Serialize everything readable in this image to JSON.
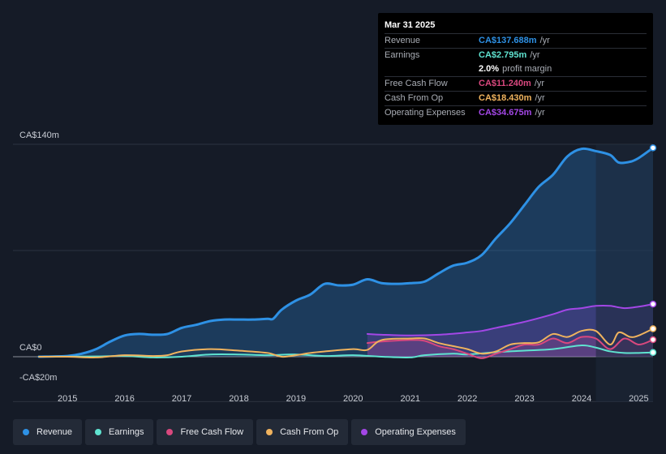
{
  "chart_data": {
    "type": "area",
    "title": "",
    "y_labels": [
      "CA$140m",
      "CA$0",
      "-CA$20m"
    ],
    "ylim": [
      -20,
      140
    ],
    "xlim": [
      2014.5,
      2025.25
    ],
    "x_ticks": [
      2015,
      2016,
      2017,
      2018,
      2019,
      2020,
      2021,
      2022,
      2023,
      2024,
      2025
    ],
    "x_tick_labels": [
      "2015",
      "2016",
      "2017",
      "2018",
      "2019",
      "2020",
      "2021",
      "2022",
      "2023",
      "2024",
      "2025"
    ],
    "forecast_start": 2024.25,
    "series": [
      {
        "name": "Revenue",
        "color": "#2e91e5",
        "fill": true,
        "points": [
          [
            2014.5,
            0
          ],
          [
            2015.0,
            0.5
          ],
          [
            2015.25,
            2
          ],
          [
            2015.5,
            5
          ],
          [
            2015.75,
            10
          ],
          [
            2016.0,
            14
          ],
          [
            2016.25,
            15
          ],
          [
            2016.5,
            14.5
          ],
          [
            2016.75,
            15
          ],
          [
            2017.0,
            19
          ],
          [
            2017.25,
            21
          ],
          [
            2017.5,
            23.5
          ],
          [
            2017.75,
            24.5
          ],
          [
            2018.0,
            24.5
          ],
          [
            2018.25,
            24.5
          ],
          [
            2018.5,
            25
          ],
          [
            2018.6,
            25
          ],
          [
            2018.75,
            31
          ],
          [
            2019.0,
            37
          ],
          [
            2019.25,
            41
          ],
          [
            2019.5,
            48
          ],
          [
            2019.75,
            47
          ],
          [
            2020.0,
            47.5
          ],
          [
            2020.25,
            51
          ],
          [
            2020.5,
            48.5
          ],
          [
            2020.75,
            48
          ],
          [
            2021.0,
            48.5
          ],
          [
            2021.25,
            49.5
          ],
          [
            2021.5,
            55
          ],
          [
            2021.75,
            60
          ],
          [
            2022.0,
            62
          ],
          [
            2022.25,
            67
          ],
          [
            2022.5,
            78
          ],
          [
            2022.75,
            88
          ],
          [
            2023.0,
            100
          ],
          [
            2023.25,
            112
          ],
          [
            2023.5,
            120
          ],
          [
            2023.75,
            132
          ],
          [
            2024.0,
            137
          ],
          [
            2024.25,
            135.5
          ],
          [
            2024.5,
            133
          ],
          [
            2024.65,
            128
          ],
          [
            2024.85,
            128.5
          ],
          [
            2025.0,
            131
          ],
          [
            2025.25,
            137.688
          ]
        ]
      },
      {
        "name": "Earnings",
        "color": "#5fe3d0",
        "fill": false,
        "points": [
          [
            2014.5,
            0
          ],
          [
            2015.5,
            0.2
          ],
          [
            2016.0,
            0.5
          ],
          [
            2016.5,
            -0.5
          ],
          [
            2017.0,
            0
          ],
          [
            2017.5,
            1.5
          ],
          [
            2018.0,
            1.5
          ],
          [
            2018.5,
            1
          ],
          [
            2019.0,
            1.5
          ],
          [
            2019.5,
            0.5
          ],
          [
            2020.0,
            1
          ],
          [
            2020.5,
            0
          ],
          [
            2021.0,
            -0.5
          ],
          [
            2021.25,
            1
          ],
          [
            2021.75,
            2
          ],
          [
            2022.0,
            1.5
          ],
          [
            2022.5,
            3
          ],
          [
            2023.0,
            4
          ],
          [
            2023.5,
            5
          ],
          [
            2024.0,
            7.5
          ],
          [
            2024.25,
            6
          ],
          [
            2024.5,
            3.5
          ],
          [
            2024.75,
            2.5
          ],
          [
            2025.0,
            2.5
          ],
          [
            2025.25,
            2.795
          ]
        ]
      },
      {
        "name": "Free Cash Flow",
        "color": "#d9487e",
        "fill": true,
        "points": [
          [
            2020.25,
            9
          ],
          [
            2020.5,
            10
          ],
          [
            2021.0,
            11
          ],
          [
            2021.25,
            10.5
          ],
          [
            2021.5,
            7
          ],
          [
            2021.75,
            5
          ],
          [
            2022.0,
            2
          ],
          [
            2022.25,
            -1
          ],
          [
            2022.5,
            2
          ],
          [
            2022.75,
            5
          ],
          [
            2023.0,
            8
          ],
          [
            2023.25,
            8
          ],
          [
            2023.5,
            12
          ],
          [
            2023.75,
            9
          ],
          [
            2024.0,
            13
          ],
          [
            2024.25,
            12
          ],
          [
            2024.5,
            5
          ],
          [
            2024.75,
            12
          ],
          [
            2025.0,
            8
          ],
          [
            2025.25,
            11.24
          ]
        ]
      },
      {
        "name": "Cash From Op",
        "color": "#f0b35e",
        "fill": false,
        "points": [
          [
            2014.5,
            0
          ],
          [
            2015.0,
            0
          ],
          [
            2015.5,
            -0.5
          ],
          [
            2016.0,
            1
          ],
          [
            2016.5,
            0.5
          ],
          [
            2016.75,
            1
          ],
          [
            2017.0,
            3.5
          ],
          [
            2017.5,
            5
          ],
          [
            2018.0,
            4
          ],
          [
            2018.5,
            2.5
          ],
          [
            2018.75,
            0
          ],
          [
            2019.0,
            1
          ],
          [
            2019.25,
            2.5
          ],
          [
            2019.5,
            3.5
          ],
          [
            2020.0,
            5
          ],
          [
            2020.25,
            4.5
          ],
          [
            2020.5,
            11
          ],
          [
            2021.0,
            12
          ],
          [
            2021.25,
            12
          ],
          [
            2021.5,
            9
          ],
          [
            2021.75,
            7
          ],
          [
            2022.0,
            5
          ],
          [
            2022.25,
            2
          ],
          [
            2022.5,
            3.5
          ],
          [
            2022.75,
            8
          ],
          [
            2023.0,
            9
          ],
          [
            2023.25,
            9.5
          ],
          [
            2023.5,
            15
          ],
          [
            2023.75,
            13
          ],
          [
            2024.0,
            17
          ],
          [
            2024.25,
            17
          ],
          [
            2024.5,
            8
          ],
          [
            2024.65,
            16
          ],
          [
            2024.85,
            13
          ],
          [
            2025.0,
            14
          ],
          [
            2025.25,
            18.43
          ]
        ]
      },
      {
        "name": "Operating Expenses",
        "color": "#a347e6",
        "fill": true,
        "points": [
          [
            2020.25,
            15
          ],
          [
            2020.5,
            14.5
          ],
          [
            2021.0,
            14
          ],
          [
            2021.5,
            14.5
          ],
          [
            2022.0,
            16
          ],
          [
            2022.25,
            17
          ],
          [
            2022.5,
            19
          ],
          [
            2023.0,
            23
          ],
          [
            2023.5,
            28
          ],
          [
            2023.75,
            31
          ],
          [
            2024.0,
            32
          ],
          [
            2024.25,
            33.5
          ],
          [
            2024.5,
            33.5
          ],
          [
            2024.75,
            32
          ],
          [
            2025.0,
            33
          ],
          [
            2025.25,
            34.675
          ]
        ]
      }
    ]
  },
  "tooltip": {
    "date": "Mar 31 2025",
    "rows": [
      {
        "label": "Revenue",
        "value": "CA$137.688m",
        "unit": "/yr",
        "color": "#2e91e5"
      },
      {
        "label": "Earnings",
        "value": "CA$2.795m",
        "unit": "/yr",
        "color": "#5fe3d0"
      },
      {
        "label": "",
        "value": "2.0%",
        "unit": "profit margin",
        "color": "#ffffff"
      },
      {
        "label": "Free Cash Flow",
        "value": "CA$11.240m",
        "unit": "/yr",
        "color": "#d9487e"
      },
      {
        "label": "Cash From Op",
        "value": "CA$18.430m",
        "unit": "/yr",
        "color": "#f0b35e"
      },
      {
        "label": "Operating Expenses",
        "value": "CA$34.675m",
        "unit": "/yr",
        "color": "#a347e6"
      }
    ]
  },
  "legend": [
    {
      "label": "Revenue",
      "color": "#2e91e5"
    },
    {
      "label": "Earnings",
      "color": "#5fe3d0"
    },
    {
      "label": "Free Cash Flow",
      "color": "#d9487e"
    },
    {
      "label": "Cash From Op",
      "color": "#f0b35e"
    },
    {
      "label": "Operating Expenses",
      "color": "#a347e6"
    }
  ]
}
